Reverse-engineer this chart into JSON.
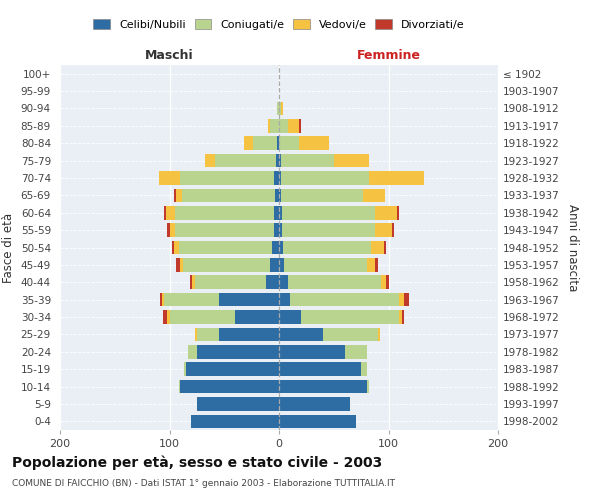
{
  "age_groups": [
    "0-4",
    "5-9",
    "10-14",
    "15-19",
    "20-24",
    "25-29",
    "30-34",
    "35-39",
    "40-44",
    "45-49",
    "50-54",
    "55-59",
    "60-64",
    "65-69",
    "70-74",
    "75-79",
    "80-84",
    "85-89",
    "90-94",
    "95-99",
    "100+"
  ],
  "birth_years": [
    "1998-2002",
    "1993-1997",
    "1988-1992",
    "1983-1987",
    "1978-1982",
    "1973-1977",
    "1968-1972",
    "1963-1967",
    "1958-1962",
    "1953-1957",
    "1948-1952",
    "1943-1947",
    "1938-1942",
    "1933-1937",
    "1928-1932",
    "1923-1927",
    "1918-1922",
    "1913-1917",
    "1908-1912",
    "1903-1907",
    "≤ 1902"
  ],
  "males_celibi": [
    80,
    75,
    90,
    85,
    75,
    55,
    40,
    55,
    12,
    8,
    6,
    5,
    5,
    4,
    5,
    3,
    2,
    0,
    0,
    0,
    0
  ],
  "males_coniugati": [
    0,
    0,
    1,
    2,
    8,
    20,
    60,
    50,
    65,
    80,
    85,
    90,
    90,
    85,
    85,
    55,
    22,
    8,
    2,
    0,
    0
  ],
  "males_vedovi": [
    0,
    0,
    0,
    0,
    0,
    2,
    2,
    2,
    2,
    2,
    5,
    5,
    8,
    5,
    20,
    10,
    8,
    2,
    0,
    0,
    0
  ],
  "males_divorziati": [
    0,
    0,
    0,
    0,
    0,
    0,
    4,
    2,
    2,
    4,
    2,
    2,
    2,
    2,
    0,
    0,
    0,
    0,
    0,
    0,
    0
  ],
  "fem_nubili": [
    70,
    65,
    80,
    75,
    60,
    40,
    20,
    10,
    8,
    5,
    4,
    3,
    3,
    2,
    2,
    2,
    0,
    0,
    0,
    0,
    0
  ],
  "fem_coniugate": [
    0,
    0,
    2,
    5,
    20,
    50,
    90,
    100,
    85,
    75,
    80,
    85,
    85,
    75,
    80,
    48,
    18,
    8,
    2,
    0,
    0
  ],
  "fem_vedove": [
    0,
    0,
    0,
    0,
    0,
    2,
    2,
    4,
    5,
    8,
    12,
    15,
    20,
    20,
    50,
    32,
    28,
    10,
    2,
    0,
    0
  ],
  "fem_divorziate": [
    0,
    0,
    0,
    0,
    0,
    0,
    2,
    5,
    2,
    2,
    2,
    2,
    2,
    0,
    0,
    0,
    0,
    2,
    0,
    0,
    0
  ],
  "color_celibi": "#2e6da4",
  "color_coniugati": "#b8d48e",
  "color_vedovi": "#f5c242",
  "color_divorziati": "#c0392b",
  "xlim": 200,
  "title": "Popolazione per età, sesso e stato civile - 2003",
  "subtitle": "COMUNE DI FAICCHIO (BN) - Dati ISTAT 1° gennaio 2003 - Elaborazione TUTTITALIA.IT",
  "ylabel_left": "Fasce di età",
  "ylabel_right": "Anni di nascita",
  "legend_labels": [
    "Celibi/Nubili",
    "Coniugati/e",
    "Vedovi/e",
    "Divorziati/e"
  ],
  "maschi_label": "Maschi",
  "femmine_label": "Femmine"
}
